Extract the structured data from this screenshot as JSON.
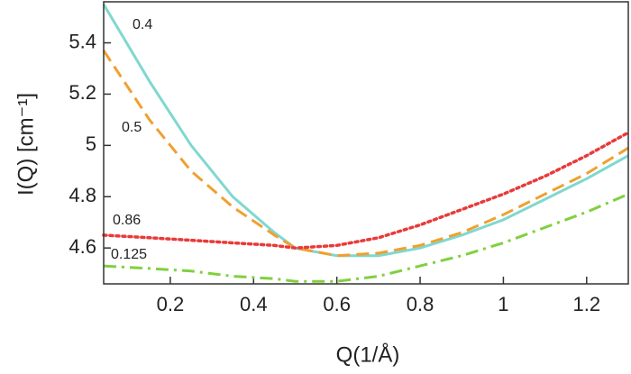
{
  "chart_data": {
    "type": "line",
    "x_label": "Q(1/Å)",
    "y_label": "I(Q) [cm⁻¹]",
    "x": [
      0.04,
      0.15,
      0.25,
      0.35,
      0.45,
      0.5,
      0.6,
      0.7,
      0.8,
      0.9,
      1.0,
      1.1,
      1.2,
      1.3
    ],
    "series": [
      {
        "name": "0.4",
        "color": "#7fd8d0",
        "dash": "solid",
        "values": [
          5.55,
          5.25,
          5.0,
          4.8,
          4.66,
          4.6,
          4.57,
          4.57,
          4.6,
          4.65,
          4.71,
          4.79,
          4.87,
          4.96
        ]
      },
      {
        "name": "0.5",
        "color": "#f0a030",
        "dash": "dashed",
        "values": [
          5.37,
          5.1,
          4.9,
          4.76,
          4.65,
          4.6,
          4.57,
          4.58,
          4.61,
          4.66,
          4.73,
          4.81,
          4.89,
          4.99
        ]
      },
      {
        "name": "0.86",
        "color": "#e83a3a",
        "dash": "dotted",
        "values": [
          4.65,
          4.64,
          4.63,
          4.62,
          4.61,
          4.6,
          4.61,
          4.64,
          4.69,
          4.75,
          4.81,
          4.88,
          4.96,
          5.05
        ]
      },
      {
        "name": "0.125",
        "color": "#80d040",
        "dash": "dashdot",
        "values": [
          4.53,
          4.52,
          4.51,
          4.49,
          4.48,
          4.47,
          4.47,
          4.49,
          4.53,
          4.57,
          4.62,
          4.68,
          4.74,
          4.81
        ]
      }
    ],
    "xlim": [
      0.04,
      1.3
    ],
    "xticks": [
      0.2,
      0.4,
      0.6,
      0.8,
      1.0,
      1.2
    ],
    "ylim": [
      4.46,
      5.56
    ],
    "yticks": [
      4.6,
      4.8,
      5.0,
      5.2,
      5.4
    ]
  }
}
